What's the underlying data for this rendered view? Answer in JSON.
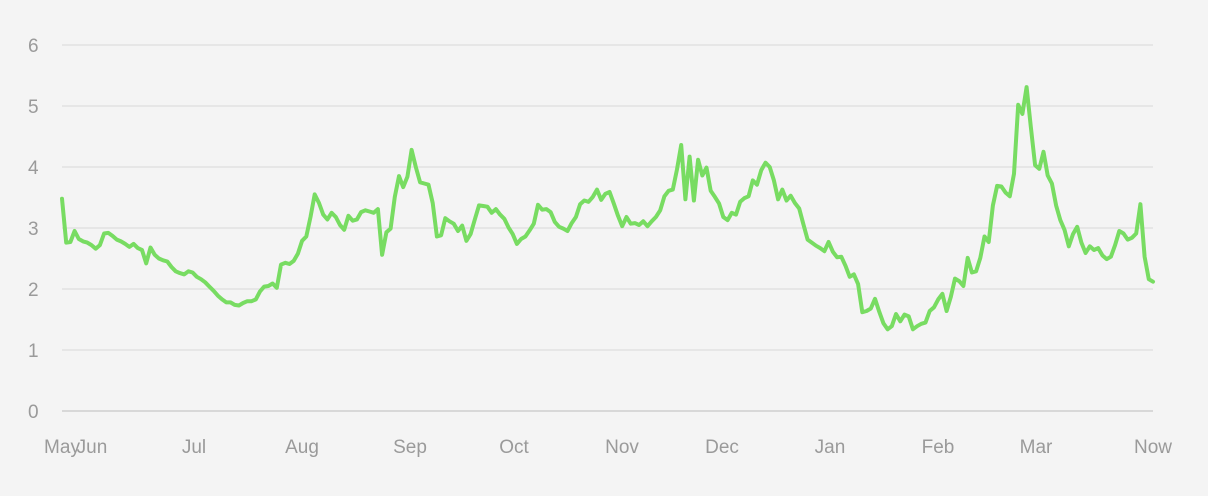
{
  "chart_data": {
    "type": "line",
    "title": "",
    "xlabel": "",
    "ylabel": "",
    "ylim": [
      0,
      6
    ],
    "y_ticks": [
      0,
      1,
      2,
      3,
      4,
      5,
      6
    ],
    "grid": true,
    "legend": "none",
    "x_tick_labels": [
      "May",
      "Jun",
      "Jul",
      "Aug",
      "Sep",
      "Oct",
      "Nov",
      "Dec",
      "Jan",
      "Feb",
      "Mar",
      "Now"
    ],
    "x_domain": [
      "May 1",
      "Now (~May 1)"
    ],
    "series": [
      {
        "color": "#78dc62",
        "points": [
          [
            "May 1",
            3.48
          ],
          [
            "May 2",
            2.76
          ],
          [
            "May 4",
            2.77
          ],
          [
            "May 6",
            2.95
          ],
          [
            "May 8",
            2.82
          ],
          [
            "May 10",
            2.78
          ],
          [
            "May 13",
            2.76
          ],
          [
            "May 16",
            2.72
          ],
          [
            "May 19",
            2.66
          ],
          [
            "May 21",
            2.72
          ],
          [
            "May 23",
            2.91
          ],
          [
            "May 25",
            2.92
          ],
          [
            "May 27",
            2.87
          ],
          [
            "May 29",
            2.81
          ],
          [
            "Jun 1",
            2.78
          ],
          [
            "Jun 3",
            2.74
          ],
          [
            "Jun 5",
            2.69
          ],
          [
            "Jun 7",
            2.74
          ],
          [
            "Jun 9",
            2.67
          ],
          [
            "Jun 11",
            2.64
          ],
          [
            "Jun 14",
            2.42
          ],
          [
            "Jun 17",
            2.68
          ],
          [
            "Jun 19",
            2.56
          ],
          [
            "Jun 21",
            2.5
          ],
          [
            "Jun 24",
            2.47
          ],
          [
            "Jun 27",
            2.45
          ],
          [
            "Jun 29",
            2.36
          ],
          [
            "Jul 2",
            2.29
          ],
          [
            "Jul 5",
            2.26
          ],
          [
            "Jul 7",
            2.24
          ],
          [
            "Jul 9",
            2.29
          ],
          [
            "Jul 11",
            2.27
          ],
          [
            "Jul 13",
            2.2
          ],
          [
            "Jul 15",
            2.16
          ],
          [
            "Jul 19",
            2.11
          ],
          [
            "Jul 23",
            2.04
          ],
          [
            "Jul 26",
            1.97
          ],
          [
            "Jul 29",
            1.89
          ],
          [
            "Aug 1",
            1.83
          ],
          [
            "Aug 4",
            1.78
          ],
          [
            "Aug 7",
            1.78
          ],
          [
            "Aug 10",
            1.74
          ],
          [
            "Aug 12",
            1.73
          ],
          [
            "Aug 14",
            1.77
          ],
          [
            "Aug 16",
            1.8
          ],
          [
            "Aug 18",
            1.8
          ],
          [
            "Aug 20",
            1.83
          ],
          [
            "Aug 22",
            1.96
          ],
          [
            "Aug 24",
            2.04
          ],
          [
            "Aug 26",
            2.05
          ],
          [
            "Aug 28",
            2.09
          ],
          [
            "Aug 29",
            2.02
          ],
          [
            "Aug 30",
            2.4
          ],
          [
            "Sep 1",
            2.43
          ],
          [
            "Sep 3",
            2.41
          ],
          [
            "Sep 5",
            2.46
          ],
          [
            "Sep 7",
            2.58
          ],
          [
            "Sep 9",
            2.79
          ],
          [
            "Sep 10",
            2.86
          ],
          [
            "Sep 12",
            3.18
          ],
          [
            "Sep 13",
            3.55
          ],
          [
            "Sep 14",
            3.41
          ],
          [
            "Sep 15",
            3.22
          ],
          [
            "Sep 17",
            3.14
          ],
          [
            "Sep 18",
            3.25
          ],
          [
            "Sep 20",
            3.18
          ],
          [
            "Sep 21",
            3.05
          ],
          [
            "Sep 23",
            2.97
          ],
          [
            "Sep 25",
            3.2
          ],
          [
            "Sep 27",
            3.12
          ],
          [
            "Sep 29",
            3.14
          ],
          [
            "Oct 1",
            3.26
          ],
          [
            "Oct 3",
            3.29
          ],
          [
            "Oct 5",
            3.27
          ],
          [
            "Oct 7",
            3.25
          ],
          [
            "Oct 9",
            3.31
          ],
          [
            "Oct 10",
            2.56
          ],
          [
            "Oct 11",
            2.93
          ],
          [
            "Oct 12",
            2.99
          ],
          [
            "Oct 13",
            3.51
          ],
          [
            "Oct 15",
            3.85
          ],
          [
            "Oct 16",
            3.67
          ],
          [
            "Oct 17",
            3.84
          ],
          [
            "Oct 18",
            4.28
          ],
          [
            "Oct 19",
            4.0
          ],
          [
            "Oct 21",
            3.75
          ],
          [
            "Oct 22",
            3.73
          ],
          [
            "Oct 23",
            3.71
          ],
          [
            "Oct 25",
            3.41
          ],
          [
            "Oct 27",
            2.86
          ],
          [
            "Oct 29",
            2.88
          ],
          [
            "Oct 30",
            3.16
          ],
          [
            "Nov 1",
            3.11
          ],
          [
            "Nov 3",
            3.07
          ],
          [
            "Nov 4",
            2.95
          ],
          [
            "Nov 6",
            3.04
          ],
          [
            "Nov 8",
            2.79
          ],
          [
            "Nov 10",
            2.9
          ],
          [
            "Nov 12",
            3.14
          ],
          [
            "Nov 14",
            3.37
          ],
          [
            "Nov 15",
            3.36
          ],
          [
            "Nov 16",
            3.35
          ],
          [
            "Nov 17",
            3.25
          ],
          [
            "Nov 19",
            3.31
          ],
          [
            "Nov 21",
            3.22
          ],
          [
            "Nov 23",
            3.15
          ],
          [
            "Nov 24",
            3.01
          ],
          [
            "Nov 26",
            2.9
          ],
          [
            "Nov 28",
            2.74
          ],
          [
            "Nov 30",
            2.82
          ],
          [
            "Dec 2",
            2.86
          ],
          [
            "Dec 4",
            2.96
          ],
          [
            "Dec 6",
            3.07
          ],
          [
            "Dec 7",
            3.38
          ],
          [
            "Dec 8",
            3.3
          ],
          [
            "Dec 10",
            3.31
          ],
          [
            "Dec 12",
            3.26
          ],
          [
            "Dec 14",
            3.1
          ],
          [
            "Dec 15",
            3.02
          ],
          [
            "Dec 17",
            2.99
          ],
          [
            "Dec 19",
            2.95
          ],
          [
            "Dec 21",
            3.08
          ],
          [
            "Dec 23",
            3.18
          ],
          [
            "Dec 25",
            3.39
          ],
          [
            "Dec 26",
            3.45
          ],
          [
            "Dec 28",
            3.43
          ],
          [
            "Dec 30",
            3.51
          ],
          [
            "Jan 1",
            3.63
          ],
          [
            "Jan 3",
            3.46
          ],
          [
            "Jan 5",
            3.56
          ],
          [
            "Jan 7",
            3.59
          ],
          [
            "Jan 9",
            3.4
          ],
          [
            "Jan 10",
            3.2
          ],
          [
            "Jan 12",
            3.03
          ],
          [
            "Jan 14",
            3.18
          ],
          [
            "Jan 16",
            3.07
          ],
          [
            "Jan 18",
            3.08
          ],
          [
            "Jan 19",
            3.05
          ],
          [
            "Jan 21",
            3.11
          ],
          [
            "Jan 23",
            3.03
          ],
          [
            "Jan 25",
            3.11
          ],
          [
            "Jan 26",
            3.18
          ],
          [
            "Jan 28",
            3.29
          ],
          [
            "Jan 30",
            3.52
          ],
          [
            "Feb 1",
            3.61
          ],
          [
            "Feb 2",
            3.63
          ],
          [
            "Feb 4",
            3.96
          ],
          [
            "Feb 5",
            4.36
          ],
          [
            "Feb 6",
            3.47
          ],
          [
            "Feb 7",
            4.17
          ],
          [
            "Feb 8",
            3.45
          ],
          [
            "Feb 9",
            4.12
          ],
          [
            "Feb 11",
            3.86
          ],
          [
            "Feb 13",
            3.99
          ],
          [
            "Feb 14",
            3.61
          ],
          [
            "Feb 16",
            3.51
          ],
          [
            "Feb 18",
            3.4
          ],
          [
            "Feb 20",
            3.18
          ],
          [
            "Feb 22",
            3.13
          ],
          [
            "Feb 24",
            3.25
          ],
          [
            "Feb 26",
            3.22
          ],
          [
            "Feb 27",
            3.43
          ],
          [
            "Mar 1",
            3.49
          ],
          [
            "Mar 3",
            3.52
          ],
          [
            "Mar 4",
            3.78
          ],
          [
            "Mar 5",
            3.71
          ],
          [
            "Mar 6",
            3.95
          ],
          [
            "Mar 8",
            4.07
          ],
          [
            "Mar 10",
            4.0
          ],
          [
            "Mar 12",
            3.78
          ],
          [
            "Mar 13",
            3.47
          ],
          [
            "Mar 15",
            3.63
          ],
          [
            "Mar 17",
            3.45
          ],
          [
            "Mar 19",
            3.53
          ],
          [
            "Mar 21",
            3.41
          ],
          [
            "Mar 23",
            3.32
          ],
          [
            "Mar 24",
            3.06
          ],
          [
            "Mar 26",
            2.81
          ],
          [
            "Mar 28",
            2.76
          ],
          [
            "Mar 30",
            2.71
          ],
          [
            "Apr 1",
            2.67
          ],
          [
            "Apr 2",
            2.62
          ],
          [
            "Apr 3",
            2.77
          ],
          [
            "Apr 5",
            2.61
          ],
          [
            "Apr 7",
            2.52
          ],
          [
            "Apr 9",
            2.53
          ],
          [
            "Apr 11",
            2.38
          ],
          [
            "Apr 12",
            2.2
          ],
          [
            "Apr 13",
            2.24
          ],
          [
            "Apr 15",
            2.08
          ],
          [
            "Apr 16",
            1.62
          ],
          [
            "Apr 18",
            1.64
          ],
          [
            "Apr 19",
            1.68
          ],
          [
            "Apr 20",
            1.84
          ],
          [
            "Apr 22",
            1.63
          ],
          [
            "Apr 24",
            1.44
          ],
          [
            "Apr 25",
            1.34
          ],
          [
            "Apr 27",
            1.39
          ],
          [
            "Apr 28",
            1.59
          ],
          [
            "Apr 29",
            1.47
          ],
          [
            "Apr 30",
            1.58
          ],
          [
            "May 2b",
            1.55
          ],
          [
            "May 3b",
            1.34
          ],
          [
            "May 5b",
            1.39
          ],
          [
            "May 6b",
            1.43
          ],
          [
            "May 8b",
            1.45
          ],
          [
            "May 9b",
            1.64
          ],
          [
            "May 11b",
            1.7
          ],
          [
            "May 12b",
            1.83
          ],
          [
            "May 13b",
            1.92
          ],
          [
            "May 14b",
            1.64
          ],
          [
            "May 16b",
            1.87
          ],
          [
            "May 18b",
            2.17
          ],
          [
            "May 20b",
            2.13
          ],
          [
            "May 22b",
            2.05
          ],
          [
            "May 23b",
            2.51
          ],
          [
            "May 24b",
            2.27
          ],
          [
            "May 26b",
            2.29
          ],
          [
            "May 28b",
            2.51
          ],
          [
            "May 29b",
            2.86
          ],
          [
            "May 30b",
            2.77
          ],
          [
            "Jun 1b",
            3.37
          ],
          [
            "Jun 2b",
            3.69
          ],
          [
            "Jun 3b",
            3.68
          ],
          [
            "Jun 5b",
            3.58
          ],
          [
            "Jun 7b",
            3.52
          ],
          [
            "Jun 8b",
            3.89
          ],
          [
            "Jun 9b",
            5.02
          ],
          [
            "Jun 10b",
            4.87
          ],
          [
            "Jun 11b",
            5.31
          ],
          [
            "Jun 13b",
            4.66
          ],
          [
            "Jun 14b",
            4.03
          ],
          [
            "Jun 15b",
            3.97
          ],
          [
            "Jun 17b",
            4.25
          ],
          [
            "Jun 18b",
            3.86
          ],
          [
            "Jun 20b",
            3.73
          ],
          [
            "Jun 21b",
            3.37
          ],
          [
            "Jun 23b",
            3.13
          ],
          [
            "Jun 25b",
            2.97
          ],
          [
            "Jun 26b",
            2.7
          ],
          [
            "Jun 28b",
            2.9
          ],
          [
            "Jun 30b",
            3.02
          ],
          [
            "Jul 1b",
            2.76
          ],
          [
            "Jul 3b",
            2.59
          ],
          [
            "Jul 4b",
            2.7
          ],
          [
            "Jul 6b",
            2.64
          ],
          [
            "Jul 7b",
            2.67
          ],
          [
            "Jul 9b",
            2.55
          ],
          [
            "Jul 11b",
            2.49
          ],
          [
            "Jul 13b",
            2.53
          ],
          [
            "Jul 15b",
            2.72
          ],
          [
            "Jul 16b",
            2.95
          ],
          [
            "Jul 18b",
            2.91
          ],
          [
            "Jul 20b",
            2.81
          ],
          [
            "Jul 21b",
            2.84
          ],
          [
            "Jul 23b",
            2.91
          ],
          [
            "Jul 24b",
            3.39
          ],
          [
            "Jul 25b",
            2.53
          ],
          [
            "Jul 26b",
            2.16
          ],
          [
            "Jul 28b",
            2.12
          ]
        ]
      }
    ]
  }
}
